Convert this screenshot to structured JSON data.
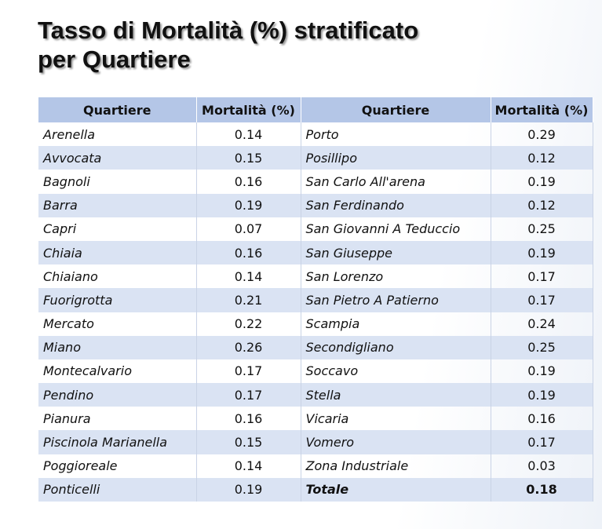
{
  "title": [
    "Tasso di Mortalità (%) stratificato",
    "per Quartiere"
  ],
  "table": {
    "headers": [
      "Quartiere",
      "Mortalità (%)",
      "Quartiere",
      "Mortalità (%)"
    ],
    "rows": [
      [
        "Arenella",
        "0.14",
        "Porto",
        "0.29"
      ],
      [
        "Avvocata",
        "0.15",
        "Posillipo",
        "0.12"
      ],
      [
        "Bagnoli",
        "0.16",
        "San Carlo All'arena",
        "0.19"
      ],
      [
        "Barra",
        "0.19",
        "San Ferdinando",
        "0.12"
      ],
      [
        "Capri",
        "0.07",
        "San Giovanni A Teduccio",
        "0.25"
      ],
      [
        "Chiaia",
        "0.16",
        "San Giuseppe",
        "0.19"
      ],
      [
        "Chiaiano",
        "0.14",
        "San Lorenzo",
        "0.17"
      ],
      [
        "Fuorigrotta",
        "0.21",
        "San Pietro A Patierno",
        "0.17"
      ],
      [
        "Mercato",
        "0.22",
        "Scampia",
        "0.24"
      ],
      [
        "Miano",
        "0.26",
        "Secondigliano",
        "0.25"
      ],
      [
        "Montecalvario",
        "0.17",
        "Soccavo",
        "0.19"
      ],
      [
        "Pendino",
        "0.17",
        "Stella",
        "0.19"
      ],
      [
        "Pianura",
        "0.16",
        "Vicaria",
        "0.16"
      ],
      [
        "Piscinola Marianella",
        "0.15",
        "Vomero",
        "0.17"
      ],
      [
        "Poggioreale",
        "0.14",
        "Zona Industriale",
        "0.03"
      ],
      [
        "Ponticelli",
        "0.19",
        "Totale",
        "0.18"
      ]
    ]
  }
}
